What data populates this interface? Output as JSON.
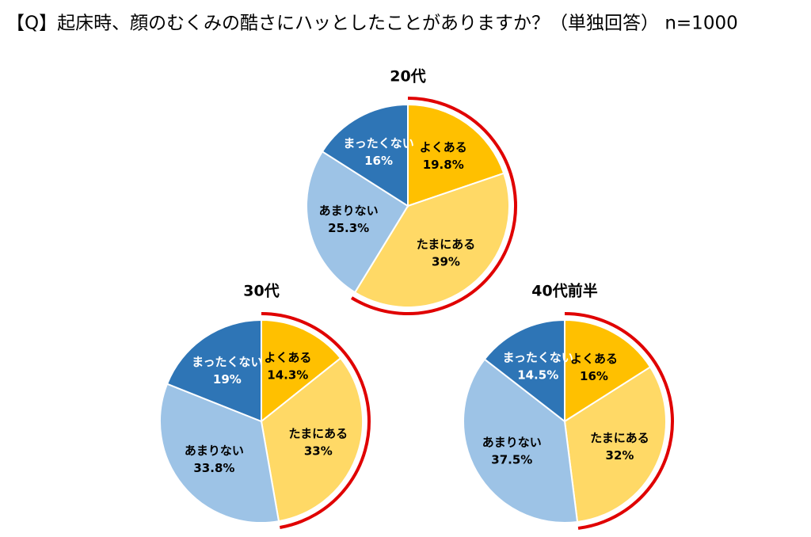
{
  "title": "【Q】起床時、顔のむくみの酷さにハッとしたことがありますか？（単独回答） n=1000",
  "chart_data": [
    {
      "type": "pie",
      "title": "20代",
      "categories": [
        "よくある",
        "たまにある",
        "あまりない",
        "まったくない"
      ],
      "values": [
        19.8,
        39,
        25.3,
        16
      ],
      "value_labels": [
        "19.8%",
        "39%",
        "25.3%",
        "16%"
      ],
      "colors": [
        "#ffc000",
        "#ffd966",
        "#9dc3e6",
        "#2e75b6"
      ]
    },
    {
      "type": "pie",
      "title": "30代",
      "categories": [
        "よくある",
        "たまにある",
        "あまりない",
        "まったくない"
      ],
      "values": [
        14.3,
        33,
        33.8,
        19
      ],
      "value_labels": [
        "14.3%",
        "33%",
        "33.8%",
        "19%"
      ],
      "colors": [
        "#ffc000",
        "#ffd966",
        "#9dc3e6",
        "#2e75b6"
      ]
    },
    {
      "type": "pie",
      "title": "40代前半",
      "categories": [
        "よくある",
        "たまにある",
        "あまりない",
        "まったくない"
      ],
      "values": [
        16,
        32,
        37.5,
        14.5
      ],
      "value_labels": [
        "16%",
        "32%",
        "37.5%",
        "14.5%"
      ],
      "colors": [
        "#ffc000",
        "#ffd966",
        "#9dc3e6",
        "#2e75b6"
      ]
    }
  ]
}
